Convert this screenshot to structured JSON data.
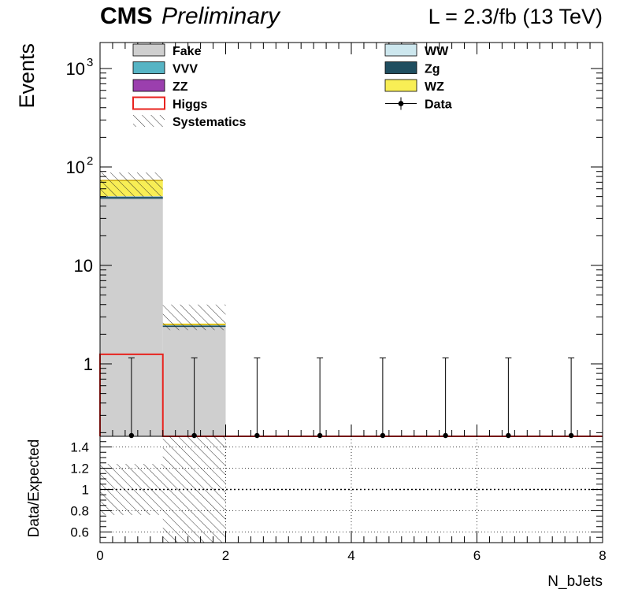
{
  "header": {
    "experiment": "CMS",
    "status": "Preliminary",
    "lumi_label": "L = 2.3/fb (13 TeV)"
  },
  "colors": {
    "fake": "#cfcfcf",
    "vvv": "#56b4c4",
    "zz": "#9b3fae",
    "higgs": "#e8231e",
    "ww": "#cde7ee",
    "zg": "#1f4e60",
    "wz": "#f8ee55",
    "data": "#000000",
    "grid": "#000000"
  },
  "legend": {
    "left": [
      {
        "label": "Fake",
        "style": "fill",
        "color_key": "fake"
      },
      {
        "label": "VVV",
        "style": "fill",
        "color_key": "vvv"
      },
      {
        "label": "ZZ",
        "style": "fill",
        "color_key": "zz"
      },
      {
        "label": "Higgs",
        "style": "outline",
        "color_key": "higgs"
      },
      {
        "label": "Systematics",
        "style": "hatch",
        "color_key": "grid"
      }
    ],
    "right": [
      {
        "label": "WW",
        "style": "fill",
        "color_key": "ww"
      },
      {
        "label": "Zg",
        "style": "fill",
        "color_key": "zg"
      },
      {
        "label": "WZ",
        "style": "fill",
        "color_key": "wz"
      },
      {
        "label": "Data",
        "style": "marker",
        "color_key": "data"
      }
    ]
  },
  "chart_data": [
    {
      "type": "bar",
      "subtype": "stacked-histogram",
      "log_scale": true,
      "ylabel": "Events",
      "xlim": [
        0,
        8
      ],
      "ylim": [
        0.4,
        2000
      ],
      "y_ticks": [
        {
          "value": 1,
          "label": "1"
        },
        {
          "value": 10,
          "label": "10"
        },
        {
          "value": 100,
          "label": "10",
          "exponent": "2"
        },
        {
          "value": 1000,
          "label": "10",
          "exponent": "3"
        }
      ],
      "bin_edges": [
        0,
        1,
        2,
        3,
        4,
        5,
        6,
        7,
        8
      ],
      "stack": [
        {
          "name": "Fake",
          "values": [
            48,
            2.4,
            0,
            0,
            0,
            0,
            0,
            0
          ]
        },
        {
          "name": "ZZ",
          "values": [
            0.5,
            0.02,
            0,
            0,
            0,
            0,
            0,
            0
          ]
        },
        {
          "name": "VVV",
          "values": [
            0.3,
            0.02,
            0,
            0,
            0,
            0,
            0,
            0
          ]
        },
        {
          "name": "Zg",
          "values": [
            1.2,
            0.02,
            0,
            0,
            0,
            0,
            0,
            0
          ]
        },
        {
          "name": "WW",
          "values": [
            0.5,
            0.01,
            0,
            0,
            0,
            0,
            0,
            0
          ]
        },
        {
          "name": "WZ",
          "values": [
            22,
            0.1,
            0,
            0,
            0,
            0,
            0,
            0
          ]
        }
      ],
      "higgs": {
        "name": "Higgs",
        "values": [
          1.25,
          0,
          0,
          0,
          0,
          0,
          0,
          0
        ]
      },
      "total": [
        73,
        2.5,
        0,
        0,
        0,
        0,
        0,
        0
      ],
      "systematics_band": [
        {
          "lo": 50,
          "hi": 88
        },
        {
          "lo": 2.2,
          "hi": 4.0
        }
      ],
      "data": {
        "name": "Data",
        "x": [
          0.5,
          1.5,
          2.5,
          3.5,
          4.5,
          5.5,
          6.5,
          7.5
        ],
        "y": [
          0,
          0,
          0,
          0,
          0,
          0,
          0,
          0
        ],
        "err_up": [
          1.15,
          1.15,
          1.15,
          1.15,
          1.15,
          1.15,
          1.15,
          1.15
        ]
      },
      "grid": false
    },
    {
      "type": "bar",
      "subtype": "ratio",
      "xlabel": "N_bJets",
      "ylabel": "Data/Expected",
      "xlim": [
        0,
        8
      ],
      "ylim": [
        0.5,
        1.5
      ],
      "x_ticks": [
        0,
        2,
        4,
        6,
        8
      ],
      "y_ticks": [
        0.6,
        0.8,
        1,
        1.2,
        1.4
      ],
      "y_tick_labels": [
        "0.6",
        "0.8",
        "1",
        "1.2",
        "1.4"
      ],
      "x_tick_labels": [
        "0",
        "2",
        "4",
        "6",
        "8"
      ],
      "band": [
        {
          "lo": 0.76,
          "hi": 1.24
        },
        {
          "lo": 0.2,
          "hi": 1.6
        }
      ],
      "grid": true
    }
  ]
}
